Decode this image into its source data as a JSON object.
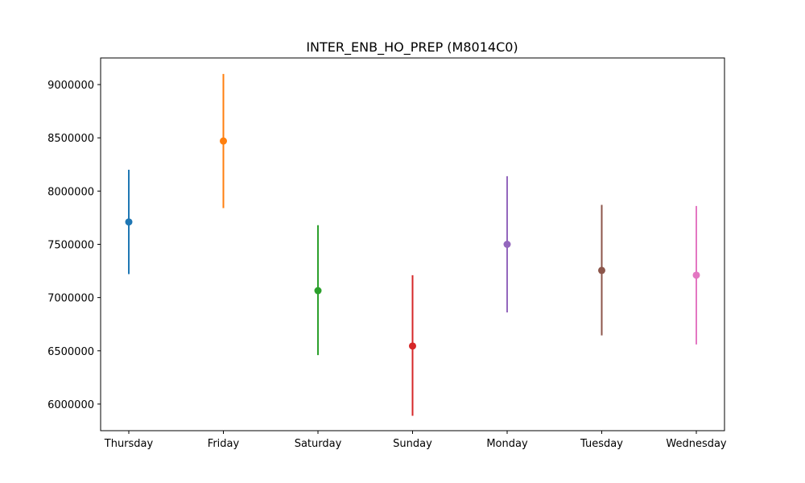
{
  "chart_data": {
    "type": "errorbar",
    "title": "INTER_ENB_HO_PREP (M8014C0)",
    "xlabel": "",
    "ylabel": "",
    "ylim": [
      5750000,
      9250000
    ],
    "yticks": [
      6000000,
      6500000,
      7000000,
      7500000,
      8000000,
      8500000,
      9000000
    ],
    "ytick_labels": [
      "6000000",
      "6500000",
      "7000000",
      "7500000",
      "8000000",
      "8500000",
      "9000000"
    ],
    "grid": false,
    "legend": "none",
    "categories": [
      "Thursday",
      "Friday",
      "Saturday",
      "Sunday",
      "Monday",
      "Tuesday",
      "Wednesday"
    ],
    "values": [
      7710000,
      8470000,
      7065000,
      6545000,
      7500000,
      7255000,
      7210000
    ],
    "lower": [
      7220000,
      7840000,
      6460000,
      5890000,
      6860000,
      6645000,
      6560000
    ],
    "upper": [
      8200000,
      9100000,
      7680000,
      7210000,
      8140000,
      7870000,
      7860000
    ],
    "colors": [
      "#1f77b4",
      "#ff7f0e",
      "#2ca02c",
      "#d62728",
      "#9467bd",
      "#8c564b",
      "#e377c2"
    ]
  }
}
